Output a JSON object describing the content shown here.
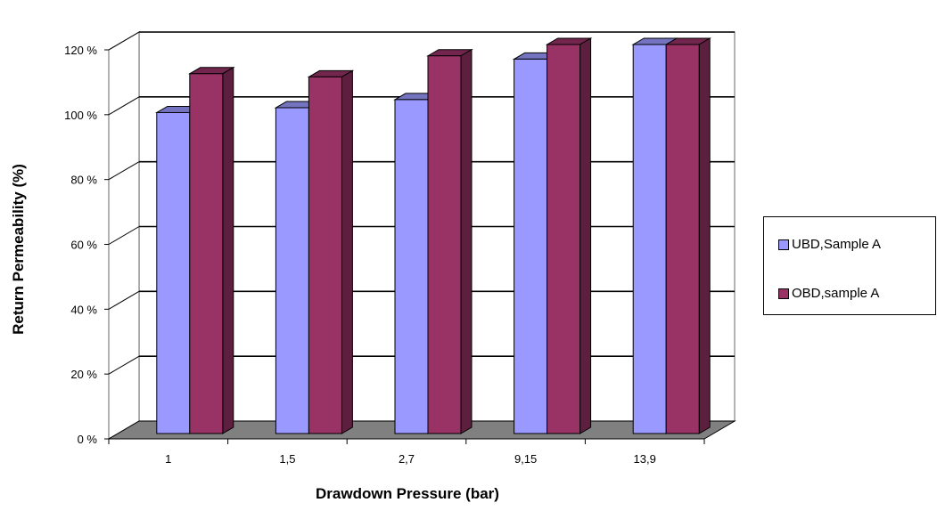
{
  "chart_data": {
    "type": "bar",
    "categories": [
      "1",
      "1,5",
      "2,7",
      "9,15",
      "13,9"
    ],
    "series": [
      {
        "name": "UBD,Sample A",
        "values": [
          99,
          100.5,
          103,
          115.5,
          120
        ],
        "color": "#9999FF"
      },
      {
        "name": "OBD,sample A",
        "values": [
          111,
          110,
          116.5,
          120,
          120
        ],
        "color": "#993366"
      }
    ],
    "xlabel": "Drawdown Pressure (bar)",
    "ylabel": "Return Permeability (%)",
    "ylim": [
      0,
      120
    ],
    "yticks": [
      "0 %",
      "20 %",
      "40 %",
      "60 %",
      "80 %",
      "100 %",
      "120 %"
    ],
    "grid": true,
    "legend_position": "right",
    "three_d": true
  }
}
